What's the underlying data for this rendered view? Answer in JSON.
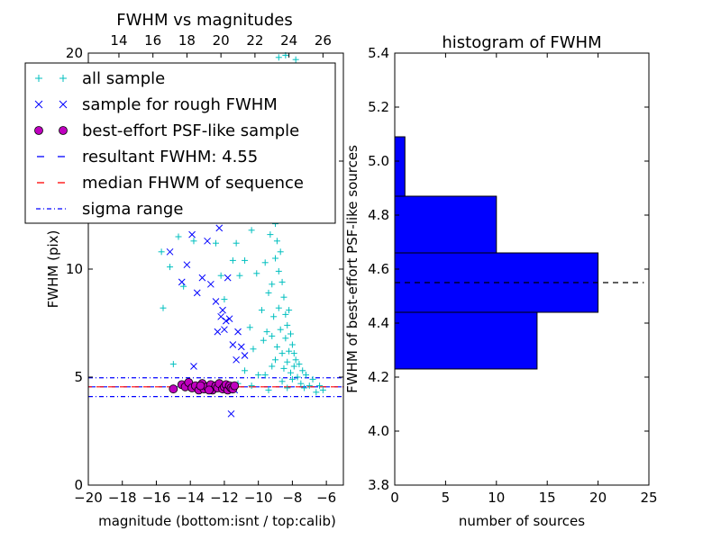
{
  "chart_data": [
    {
      "type": "scatter",
      "title": "FWHM vs magnitudes",
      "xlabel": "magnitude (bottom:isnt / top:calib)",
      "ylabel": "FWHM (pix)",
      "xlim": [
        -20,
        -5
      ],
      "ylim": [
        0,
        20
      ],
      "x_ticks": [
        "−20",
        "−18",
        "−16",
        "−14",
        "−12",
        "−10",
        "−8",
        "−6"
      ],
      "x_tick_values": [
        -20,
        -18,
        -16,
        -14,
        -12,
        -10,
        -8,
        -6
      ],
      "y_ticks": [
        "0",
        "5",
        "10",
        "15",
        "20"
      ],
      "y_tick_values": [
        0,
        5,
        10,
        15,
        20
      ],
      "top_axis": {
        "ticks": [
          "14",
          "16",
          "18",
          "20",
          "22",
          "24",
          "26"
        ],
        "values": [
          14,
          16,
          18,
          20,
          22,
          24,
          26
        ],
        "offset": 32.2
      },
      "grid": false,
      "legend_placement": "top-left",
      "legend": [
        {
          "label": "all sample",
          "marker": "plus",
          "color": "#00bfbf"
        },
        {
          "label": "sample for rough FWHM",
          "marker": "x",
          "color": "#0000ff"
        },
        {
          "label": "best-effort PSF-like sample",
          "marker": "circle",
          "color": "#bf00bf"
        },
        {
          "label": "resultant FWHM: 4.55",
          "marker": "dash",
          "color": "#0000ff"
        },
        {
          "label": "median FHWM of sequence",
          "marker": "dash",
          "color": "#ff0000"
        },
        {
          "label": "sigma range",
          "marker": "dashdot",
          "color": "#0000ff"
        }
      ],
      "lines": {
        "resultant_fwhm": 4.55,
        "median_fwhm": 4.55,
        "sigma_range": [
          4.1,
          4.97
        ]
      },
      "series": [
        {
          "name": "all sample",
          "color": "#00bfbf",
          "points": [
            [
              -15.7,
              10.8
            ],
            [
              -15.6,
              8.2
            ],
            [
              -15.2,
              10.1
            ],
            [
              -15.0,
              5.6
            ],
            [
              -14.7,
              11.5
            ],
            [
              -14.4,
              9.2
            ],
            [
              -13.8,
              11.3
            ],
            [
              -13.5,
              13.1
            ],
            [
              -13.0,
              12.6
            ],
            [
              -12.5,
              11.2
            ],
            [
              -12.2,
              9.7
            ],
            [
              -12.0,
              8.6
            ],
            [
              -11.7,
              13.4
            ],
            [
              -11.5,
              10.4
            ],
            [
              -11.3,
              11.2
            ],
            [
              -11.1,
              9.7
            ],
            [
              -11.0,
              12.9
            ],
            [
              -10.8,
              10.4
            ],
            [
              -10.6,
              13.8
            ],
            [
              -10.5,
              7.3
            ],
            [
              -10.4,
              11.8
            ],
            [
              -10.3,
              6.3
            ],
            [
              -10.2,
              13.1
            ],
            [
              -10.1,
              9.8
            ],
            [
              -10.0,
              16.5
            ],
            [
              -10.0,
              5.1
            ],
            [
              -9.9,
              15.3
            ],
            [
              -9.8,
              12.4
            ],
            [
              -9.8,
              8.1
            ],
            [
              -9.7,
              6.7
            ],
            [
              -9.6,
              14.5
            ],
            [
              -9.6,
              10.3
            ],
            [
              -9.5,
              12.9
            ],
            [
              -9.5,
              7.1
            ],
            [
              -9.4,
              13.7
            ],
            [
              -9.4,
              8.9
            ],
            [
              -9.3,
              14.8
            ],
            [
              -9.3,
              11.6
            ],
            [
              -9.2,
              9.3
            ],
            [
              -9.2,
              5.5
            ],
            [
              -9.1,
              13.2
            ],
            [
              -9.1,
              7.8
            ],
            [
              -9.0,
              12.1
            ],
            [
              -9.0,
              10.5
            ],
            [
              -8.9,
              11.3
            ],
            [
              -8.9,
              6.4
            ],
            [
              -8.8,
              9.9
            ],
            [
              -8.8,
              8.2
            ],
            [
              -8.7,
              10.8
            ],
            [
              -8.7,
              7.2
            ],
            [
              -8.6,
              9.4
            ],
            [
              -8.6,
              6.1
            ],
            [
              -8.5,
              8.7
            ],
            [
              -8.5,
              5.4
            ],
            [
              -8.4,
              7.9
            ],
            [
              -8.4,
              6.8
            ],
            [
              -8.3,
              7.4
            ],
            [
              -8.3,
              5.7
            ],
            [
              -8.2,
              8.1
            ],
            [
              -8.2,
              6.2
            ],
            [
              -8.1,
              7.0
            ],
            [
              -8.1,
              5.2
            ],
            [
              -8.0,
              6.5
            ],
            [
              -8.0,
              4.9
            ],
            [
              -7.9,
              6.1
            ],
            [
              -7.9,
              5.5
            ],
            [
              -7.8,
              5.8
            ],
            [
              -7.7,
              5.0
            ],
            [
              -7.6,
              5.6
            ],
            [
              -7.5,
              4.7
            ],
            [
              -7.4,
              5.3
            ],
            [
              -7.3,
              4.5
            ],
            [
              -7.2,
              5.1
            ],
            [
              -7.0,
              4.6
            ],
            [
              -6.8,
              4.9
            ],
            [
              -6.6,
              4.3
            ],
            [
              -6.4,
              4.6
            ],
            [
              -6.2,
              4.4
            ],
            [
              -8.8,
              19.8
            ],
            [
              -8.4,
              19.9
            ],
            [
              -7.8,
              19.7
            ],
            [
              -6.5,
              15.9
            ],
            [
              -6.0,
              16.2
            ],
            [
              -9.2,
              6.9
            ],
            [
              -9.0,
              5.8
            ],
            [
              -8.6,
              4.8
            ],
            [
              -8.3,
              4.5
            ],
            [
              -9.4,
              4.4
            ],
            [
              -10.4,
              4.6
            ],
            [
              -11.2,
              4.7
            ],
            [
              -12.7,
              4.5
            ],
            [
              -14.1,
              4.7
            ],
            [
              -10.8,
              5.3
            ],
            [
              -9.6,
              5.1
            ]
          ]
        },
        {
          "name": "sample for rough FWHM",
          "color": "#0000ff",
          "points": [
            [
              -15.2,
              10.8
            ],
            [
              -14.5,
              9.4
            ],
            [
              -14.2,
              10.2
            ],
            [
              -13.9,
              11.6
            ],
            [
              -13.6,
              8.9
            ],
            [
              -13.3,
              9.6
            ],
            [
              -13.0,
              11.3
            ],
            [
              -12.9,
              12.7
            ],
            [
              -12.8,
              9.3
            ],
            [
              -12.5,
              8.5
            ],
            [
              -12.2,
              7.8
            ],
            [
              -12.1,
              8.1
            ],
            [
              -12.0,
              7.2
            ],
            [
              -11.9,
              7.6
            ],
            [
              -11.8,
              9.6
            ],
            [
              -11.7,
              7.7
            ],
            [
              -11.5,
              6.5
            ],
            [
              -11.3,
              5.8
            ],
            [
              -11.2,
              7.1
            ],
            [
              -11.0,
              6.4
            ],
            [
              -10.8,
              6.0
            ],
            [
              -12.4,
              7.1
            ],
            [
              -11.6,
              3.3
            ],
            [
              -11.4,
              4.4
            ],
            [
              -12.3,
              11.9
            ],
            [
              -13.8,
              5.5
            ]
          ]
        },
        {
          "name": "best-effort PSF-like sample",
          "color": "#bf00bf",
          "points": [
            [
              -15.0,
              4.45
            ],
            [
              -14.5,
              4.65
            ],
            [
              -14.3,
              4.55
            ],
            [
              -14.1,
              4.75
            ],
            [
              -13.9,
              4.5
            ],
            [
              -13.7,
              4.6
            ],
            [
              -13.5,
              4.4
            ],
            [
              -13.3,
              4.7
            ],
            [
              -13.2,
              4.45
            ],
            [
              -13.0,
              4.55
            ],
            [
              -12.8,
              4.65
            ],
            [
              -12.7,
              4.4
            ],
            [
              -12.5,
              4.6
            ],
            [
              -12.4,
              4.5
            ],
            [
              -12.3,
              4.7
            ],
            [
              -12.1,
              4.45
            ],
            [
              -12.0,
              4.55
            ],
            [
              -11.9,
              4.65
            ],
            [
              -11.8,
              4.4
            ],
            [
              -11.7,
              4.6
            ],
            [
              -11.6,
              4.5
            ],
            [
              -11.5,
              4.45
            ],
            [
              -11.4,
              4.6
            ],
            [
              -13.4,
              4.6
            ],
            [
              -12.9,
              4.4
            ]
          ]
        }
      ]
    },
    {
      "type": "bar",
      "orientation": "horizontal",
      "title": "histogram of FWHM",
      "xlabel": "number of sources",
      "ylabel": "FWHM of best-effort PSF-like sources",
      "xlim": [
        0,
        25
      ],
      "ylim": [
        3.8,
        5.4
      ],
      "x_ticks": [
        "0",
        "5",
        "10",
        "15",
        "20",
        "25"
      ],
      "x_tick_values": [
        0,
        5,
        10,
        15,
        20,
        25
      ],
      "y_ticks": [
        "3.8",
        "4.0",
        "4.2",
        "4.4",
        "4.6",
        "4.8",
        "5.0",
        "5.2",
        "5.4"
      ],
      "y_tick_values": [
        3.8,
        4.0,
        4.2,
        4.4,
        4.6,
        4.8,
        5.0,
        5.2,
        5.4
      ],
      "grid": false,
      "bar_color": "#0000ff",
      "bins": [
        {
          "low": 4.23,
          "high": 4.44,
          "count": 14
        },
        {
          "low": 4.44,
          "high": 4.66,
          "count": 20
        },
        {
          "low": 4.66,
          "high": 4.87,
          "count": 10
        },
        {
          "low": 4.87,
          "high": 5.09,
          "count": 1
        }
      ],
      "reference_line": 4.55
    }
  ]
}
